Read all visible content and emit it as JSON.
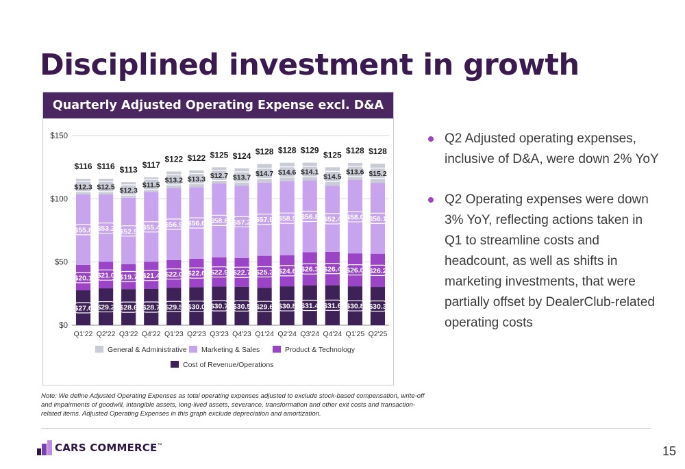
{
  "slide": {
    "title": "Disciplined investment in growth",
    "page_number": "15"
  },
  "bullets": [
    "Q2 Adjusted operating expenses, inclusive of D&A, were down 2% YoY",
    "Q2 Operating expenses were down 3% YoY, reflecting actions taken in Q1 to streamline costs and headcount, as well as shifts in marketing investments, that were partially offset by DealerClub-related operating costs"
  ],
  "note": "Note: We define Adjusted Operating Expenses as total operating expenses adjusted to exclude stock-based compensation, write-off and impairments of goodwill, intangible assets, long-lived assets, severance, transformation and other exit costs and transaction-related items. Adjusted Operating Expenses in this graph exclude depreciation and amortization.",
  "logo": {
    "text": "CARS COMMERCE",
    "trademark": "™"
  },
  "chart_data": {
    "type": "bar",
    "stacked": true,
    "title": "Quarterly Adjusted Operating Expense excl. D&A ($MM)",
    "categories": [
      "Q1'22",
      "Q2'22",
      "Q3'22",
      "Q4'22",
      "Q1'23",
      "Q2'23",
      "Q3'23",
      "Q4'23",
      "Q1'24",
      "Q2'24",
      "Q3'24",
      "Q4'24",
      "Q1'25",
      "Q2'25"
    ],
    "ylim": [
      0,
      150
    ],
    "yticks": [
      0,
      50,
      100,
      150
    ],
    "ytick_labels": [
      "$0",
      "$50",
      "$100",
      "$150"
    ],
    "grid": true,
    "legend_position": "bottom",
    "series": [
      {
        "name": "Cost of Revenue/Operations",
        "color": "#3d2157",
        "values": [
          27.6,
          29.2,
          28.6,
          28.7,
          29.5,
          30.0,
          30.7,
          30.5,
          29.6,
          30.8,
          31.4,
          31.6,
          30.8,
          30.3
        ],
        "labels": [
          "$27.6",
          "$29.2",
          "$28.6",
          "$28.7",
          "$29.5",
          "$30.0",
          "$30.7",
          "$30.5",
          "$29.6",
          "$30.8",
          "$31.4",
          "$31.6",
          "$30.8",
          "$30.3"
        ]
      },
      {
        "name": "Product & Technology",
        "color": "#9b44c7",
        "values": [
          20.1,
          21.0,
          19.7,
          21.4,
          22.0,
          22.6,
          22.9,
          22.7,
          25.3,
          24.6,
          26.3,
          26.4,
          26.0,
          26.2
        ],
        "labels": [
          "$20.1",
          "$21.0",
          "$19.7",
          "$21.4",
          "$22.0",
          "$22.6",
          "$22.9",
          "$22.7",
          "$25.3",
          "$24.6",
          "$26.3",
          "$26.4",
          "$26.0",
          "$26.2"
        ]
      },
      {
        "name": "Marketing & Sales",
        "color": "#c8a4ee",
        "values": [
          55.8,
          53.2,
          52.5,
          55.4,
          56.9,
          56.6,
          58.6,
          57.2,
          57.9,
          58.5,
          56.8,
          52.4,
          58.0,
          56.1
        ],
        "labels": [
          "$55.8",
          "$53.2",
          "$52.5",
          "$55.4",
          "$56.9",
          "$56.6",
          "$58.6",
          "$57.2",
          "$57.9",
          "$58.5",
          "$56.8",
          "$52.4",
          "$58.0",
          "$56.1"
        ]
      },
      {
        "name": "General & Administrative",
        "color": "#c9ccd6",
        "values": [
          12.3,
          12.5,
          12.3,
          11.5,
          13.2,
          13.3,
          12.7,
          13.7,
          14.7,
          14.6,
          14.1,
          14.5,
          13.6,
          15.2
        ],
        "labels": [
          "$12.3",
          "$12.5",
          "$12.3",
          "$11.5",
          "$13.2",
          "$13.3",
          "$12.7",
          "$13.7",
          "$14.7",
          "$14.6",
          "$14.1",
          "$14.5",
          "$13.6",
          "$15.2"
        ]
      }
    ],
    "totals": [
      116,
      116,
      113,
      117,
      122,
      122,
      125,
      124,
      128,
      128,
      129,
      125,
      128,
      128
    ],
    "total_labels": [
      "$116",
      "$116",
      "$113",
      "$117",
      "$122",
      "$122",
      "$125",
      "$124",
      "$128",
      "$128",
      "$129",
      "$125",
      "$128",
      "$128"
    ],
    "legend_order": [
      "General & Administrative",
      "Marketing & Sales",
      "Product & Technology",
      "Cost of Revenue/Operations"
    ]
  }
}
